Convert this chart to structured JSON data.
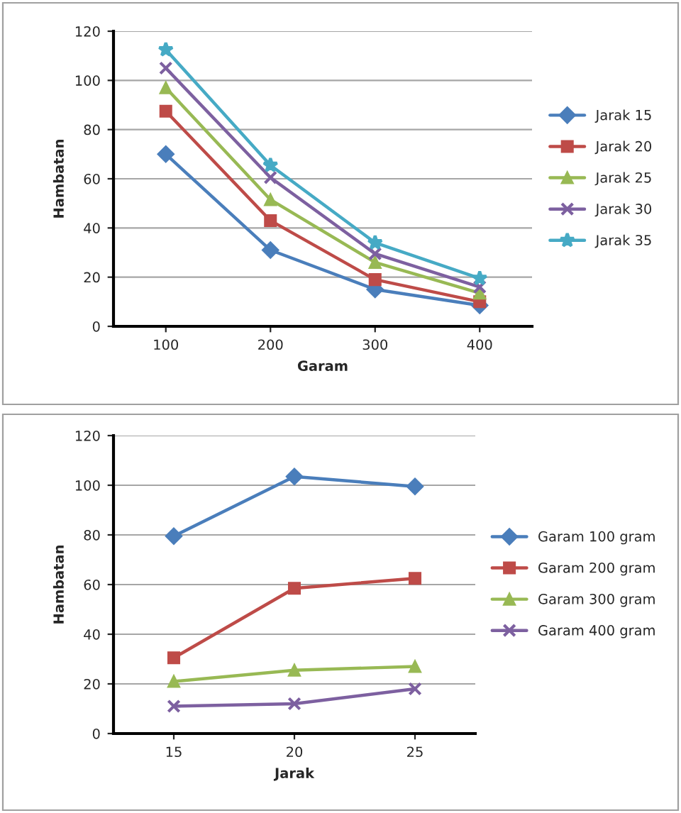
{
  "chart_data": [
    {
      "type": "line",
      "xlabel": "Garam",
      "ylabel": "Hambatan",
      "categories": [
        "100",
        "200",
        "300",
        "400"
      ],
      "ylim": [
        0,
        120
      ],
      "yticks": [
        0,
        20,
        40,
        60,
        80,
        100,
        120
      ],
      "grid": "y",
      "legend": "right",
      "series": [
        {
          "name": "Jarak 15",
          "color": "#4a7ebb",
          "marker": "diamond",
          "values": [
            70,
            31,
            15,
            8.5
          ]
        },
        {
          "name": "Jarak 20",
          "color": "#be4b48",
          "marker": "square",
          "values": [
            87.5,
            43,
            19,
            10
          ]
        },
        {
          "name": "Jarak 25",
          "color": "#98b954",
          "marker": "triangle",
          "values": [
            97,
            51.5,
            26,
            13.5
          ]
        },
        {
          "name": "Jarak 30",
          "color": "#7d60a0",
          "marker": "cross",
          "values": [
            105,
            60.5,
            29.5,
            16
          ]
        },
        {
          "name": "Jarak 35",
          "color": "#46aac5",
          "marker": "star",
          "values": [
            112.5,
            65.5,
            34,
            19.5
          ]
        }
      ]
    },
    {
      "type": "line",
      "xlabel": "Jarak",
      "ylabel": "Hambatan",
      "categories": [
        "15",
        "20",
        "25"
      ],
      "ylim": [
        0,
        120
      ],
      "yticks": [
        0,
        20,
        40,
        60,
        80,
        100,
        120
      ],
      "grid": "y",
      "legend": "right",
      "series": [
        {
          "name": "Garam 100 gram",
          "color": "#4a7ebb",
          "marker": "diamond",
          "values": [
            79.5,
            103.5,
            99.5
          ]
        },
        {
          "name": "Garam 200 gram",
          "color": "#be4b48",
          "marker": "square",
          "values": [
            30.5,
            58.5,
            62.5
          ]
        },
        {
          "name": "Garam 300 gram",
          "color": "#98b954",
          "marker": "triangle",
          "values": [
            21,
            25.5,
            27
          ]
        },
        {
          "name": "Garam 400 gram",
          "color": "#7d60a0",
          "marker": "cross",
          "values": [
            11,
            12,
            18
          ]
        }
      ]
    }
  ]
}
